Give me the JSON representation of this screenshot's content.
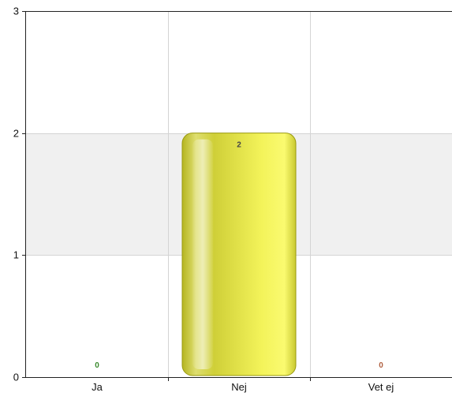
{
  "chart_data": {
    "type": "bar",
    "categories": [
      "Ja",
      "Nej",
      "Vet ej"
    ],
    "values": [
      0,
      2,
      0
    ],
    "data_labels": [
      "0",
      "2",
      "0"
    ],
    "ylim": [
      0,
      3
    ],
    "yticks": [
      "0",
      "1",
      "2",
      "3"
    ],
    "grid": true,
    "bar_color": "#e6e64a",
    "label_colors": [
      "#3a8a2e",
      "#444444",
      "#b06040"
    ],
    "band_colors": [
      "#ffffff",
      "#f0f0f0"
    ],
    "xlabel": "",
    "ylabel": "",
    "title": ""
  }
}
